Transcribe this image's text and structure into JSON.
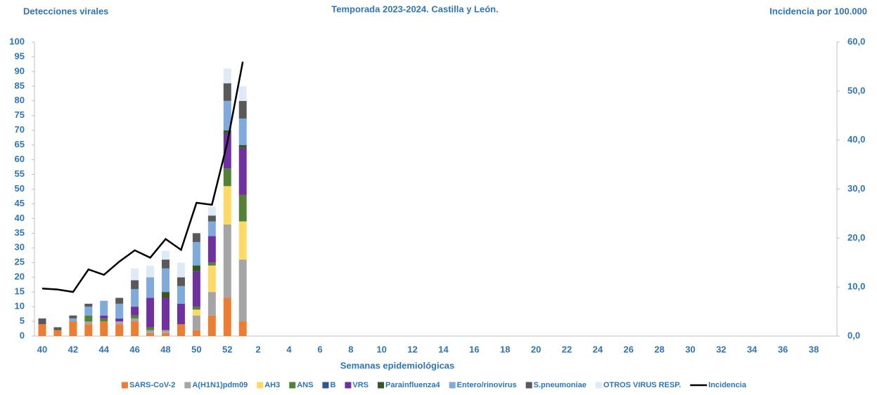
{
  "chart_data": {
    "type": "bar",
    "stacked": true,
    "title": "Temporada 2023-2024. Castilla y León.",
    "ylabel": "Detecciones virales",
    "y2label": "Incidencia por 100.000",
    "xlabel": "Semanas epidemiológicas",
    "categories": [
      40,
      null,
      42,
      null,
      44,
      null,
      46,
      null,
      48,
      null,
      50,
      null,
      52,
      null,
      2,
      null,
      4,
      null,
      6,
      null,
      8,
      null,
      10,
      null,
      12,
      null,
      14,
      null,
      16,
      null,
      18,
      null,
      20,
      null,
      22,
      null,
      24,
      null,
      26,
      null,
      28,
      null,
      30,
      null,
      32,
      null,
      34,
      null,
      36,
      null,
      38,
      null
    ],
    "ylim": [
      0,
      100
    ],
    "yticks": [
      0,
      5,
      10,
      15,
      20,
      25,
      30,
      35,
      40,
      45,
      50,
      55,
      60,
      65,
      70,
      75,
      80,
      85,
      90,
      95,
      100
    ],
    "y2lim": [
      0,
      60
    ],
    "y2ticks": [
      {
        "value": 0,
        "label": "0,0"
      },
      {
        "value": 10,
        "label": "10,0"
      },
      {
        "value": 20,
        "label": "20,0"
      },
      {
        "value": 30,
        "label": "30,0"
      },
      {
        "value": 40,
        "label": "40,0"
      },
      {
        "value": 50,
        "label": "50,0"
      },
      {
        "value": 60,
        "label": "60,0"
      }
    ],
    "grid": false,
    "legend": "bottom",
    "series": [
      {
        "name": "SARS-CoV-2",
        "color": "#ed7d31",
        "values": [
          4,
          2,
          5,
          4,
          5,
          4,
          5,
          1,
          1,
          4,
          2,
          7,
          13,
          5,
          null,
          null,
          null,
          null,
          null,
          null,
          null,
          null,
          null,
          null,
          null,
          null,
          null,
          null,
          null,
          null,
          null,
          null,
          null,
          null,
          null,
          null,
          null,
          null,
          null,
          null,
          null,
          null,
          null,
          null,
          null,
          null,
          null,
          null,
          null,
          null,
          null,
          null
        ]
      },
      {
        "name": "A(H1N1)pdm09",
        "color": "#a5a5a5",
        "values": [
          0,
          0,
          0,
          1,
          0,
          1,
          1,
          1,
          1,
          0,
          5,
          8,
          25,
          21,
          null,
          null,
          null,
          null,
          null,
          null,
          null,
          null,
          null,
          null,
          null,
          null,
          null,
          null,
          null,
          null,
          null,
          null,
          null,
          null,
          null,
          null,
          null,
          null,
          null,
          null,
          null,
          null,
          null,
          null,
          null,
          null,
          null,
          null,
          null,
          null,
          null,
          null
        ]
      },
      {
        "name": "AH3",
        "color": "#ffd966",
        "values": [
          0,
          0,
          0,
          0,
          0,
          0,
          0,
          0,
          0,
          0,
          2,
          9,
          13,
          13,
          null,
          null,
          null,
          null,
          null,
          null,
          null,
          null,
          null,
          null,
          null,
          null,
          null,
          null,
          null,
          null,
          null,
          null,
          null,
          null,
          null,
          null,
          null,
          null,
          null,
          null,
          null,
          null,
          null,
          null,
          null,
          null,
          null,
          null,
          null,
          null,
          null,
          null
        ]
      },
      {
        "name": "ANS",
        "color": "#548235",
        "values": [
          0,
          0,
          0,
          2,
          1,
          0,
          1,
          1,
          0,
          0,
          1,
          1,
          6,
          9,
          null,
          null,
          null,
          null,
          null,
          null,
          null,
          null,
          null,
          null,
          null,
          null,
          null,
          null,
          null,
          null,
          null,
          null,
          null,
          null,
          null,
          null,
          null,
          null,
          null,
          null,
          null,
          null,
          null,
          null,
          null,
          null,
          null,
          null,
          null,
          null,
          null,
          null
        ]
      },
      {
        "name": "B",
        "color": "#2f5597",
        "values": [
          0,
          0,
          0,
          0,
          0,
          0,
          0,
          0,
          0,
          0,
          0,
          0,
          0,
          0,
          null,
          null,
          null,
          null,
          null,
          null,
          null,
          null,
          null,
          null,
          null,
          null,
          null,
          null,
          null,
          null,
          null,
          null,
          null,
          null,
          null,
          null,
          null,
          null,
          null,
          null,
          null,
          null,
          null,
          null,
          null,
          null,
          null,
          null,
          null,
          null,
          null,
          null
        ]
      },
      {
        "name": "VRS",
        "color": "#7030a0",
        "values": [
          0,
          0,
          0,
          0,
          1,
          1,
          3,
          10,
          11,
          7,
          12,
          9,
          12,
          16,
          null,
          null,
          null,
          null,
          null,
          null,
          null,
          null,
          null,
          null,
          null,
          null,
          null,
          null,
          null,
          null,
          null,
          null,
          null,
          null,
          null,
          null,
          null,
          null,
          null,
          null,
          null,
          null,
          null,
          null,
          null,
          null,
          null,
          null,
          null,
          null,
          null,
          null
        ]
      },
      {
        "name": "Parainfluenza4",
        "color": "#375623",
        "values": [
          0,
          0,
          0,
          0,
          0,
          0,
          0,
          0,
          2,
          0,
          2,
          0,
          1,
          1,
          null,
          null,
          null,
          null,
          null,
          null,
          null,
          null,
          null,
          null,
          null,
          null,
          null,
          null,
          null,
          null,
          null,
          null,
          null,
          null,
          null,
          null,
          null,
          null,
          null,
          null,
          null,
          null,
          null,
          null,
          null,
          null,
          null,
          null,
          null,
          null,
          null,
          null
        ]
      },
      {
        "name": "Entero/rinovirus",
        "color": "#7eaadc",
        "values": [
          0,
          0,
          1,
          3,
          5,
          5,
          6,
          7,
          8,
          6,
          8,
          5,
          10,
          9,
          null,
          null,
          null,
          null,
          null,
          null,
          null,
          null,
          null,
          null,
          null,
          null,
          null,
          null,
          null,
          null,
          null,
          null,
          null,
          null,
          null,
          null,
          null,
          null,
          null,
          null,
          null,
          null,
          null,
          null,
          null,
          null,
          null,
          null,
          null,
          null,
          null,
          null
        ]
      },
      {
        "name": "S.pneumoniae",
        "color": "#595959",
        "values": [
          2,
          1,
          1,
          1,
          0,
          2,
          3,
          0,
          3,
          3,
          3,
          2,
          6,
          6,
          null,
          null,
          null,
          null,
          null,
          null,
          null,
          null,
          null,
          null,
          null,
          null,
          null,
          null,
          null,
          null,
          null,
          null,
          null,
          null,
          null,
          null,
          null,
          null,
          null,
          null,
          null,
          null,
          null,
          null,
          null,
          null,
          null,
          null,
          null,
          null,
          null,
          null
        ]
      },
      {
        "name": "OTROS VIRUS RESP.",
        "color": "#deebf7",
        "values": [
          0,
          0,
          0,
          0,
          0,
          0,
          4,
          4,
          3,
          5,
          0,
          3,
          5,
          5,
          null,
          null,
          null,
          null,
          null,
          null,
          null,
          null,
          null,
          null,
          null,
          null,
          null,
          null,
          null,
          null,
          null,
          null,
          null,
          null,
          null,
          null,
          null,
          null,
          null,
          null,
          null,
          null,
          null,
          null,
          null,
          null,
          null,
          null,
          null,
          null,
          null,
          null
        ]
      },
      {
        "name": "Incidencia",
        "type": "line",
        "axis": "y2",
        "color": "#000000",
        "values": [
          9.7,
          9.5,
          9.0,
          13.6,
          12.5,
          15.2,
          17.5,
          16.0,
          19.8,
          17.6,
          27.2,
          26.8,
          39.5,
          56.0,
          null,
          null,
          null,
          null,
          null,
          null,
          null,
          null,
          null,
          null,
          null,
          null,
          null,
          null,
          null,
          null,
          null,
          null,
          null,
          null,
          null,
          null,
          null,
          null,
          null,
          null,
          null,
          null,
          null,
          null,
          null,
          null,
          null,
          null,
          null,
          null,
          null,
          null
        ]
      }
    ]
  }
}
